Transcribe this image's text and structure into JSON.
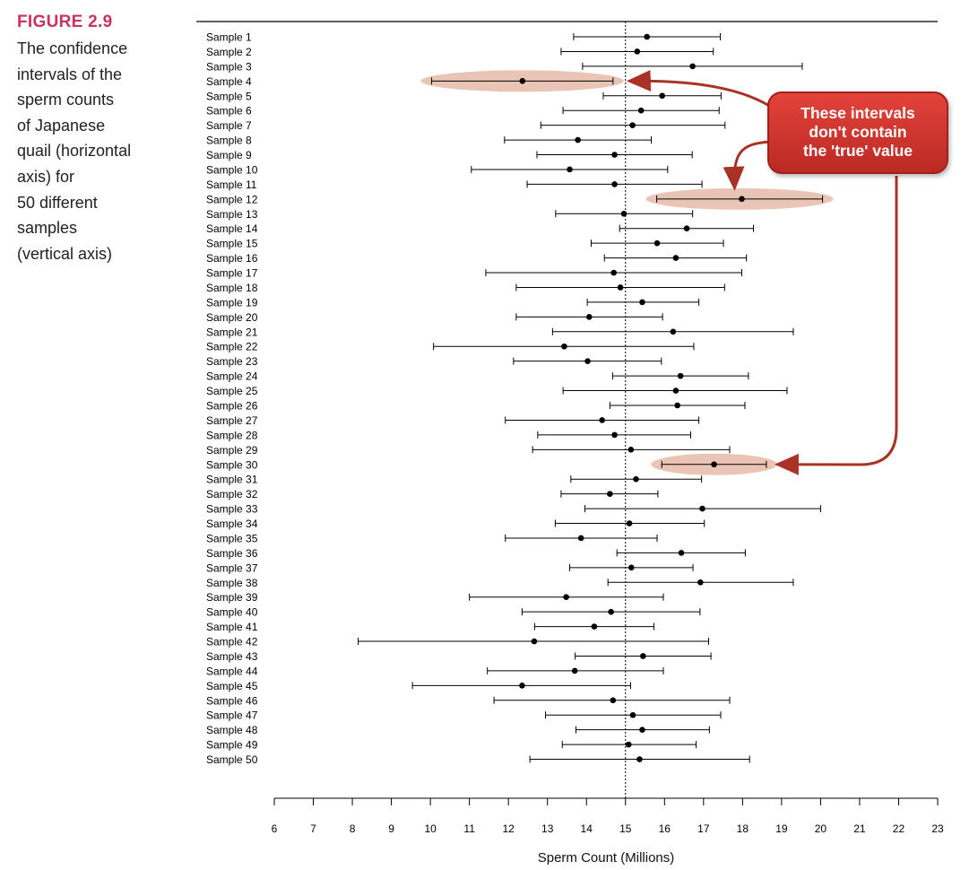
{
  "figure": {
    "label": "FIGURE 2.9",
    "caption_lines": [
      "The confidence",
      "intervals of the",
      "sperm counts",
      "of Japanese",
      "quail (horizontal",
      "axis) for",
      "50 different",
      "samples",
      "(vertical axis)"
    ]
  },
  "callout": {
    "lines": [
      "These intervals",
      "don't contain",
      "the 'true' value"
    ],
    "color": "#d9352e"
  },
  "colors": {
    "highlight": "#e8bfae",
    "arrow": "#a93226",
    "interval": "#000000"
  },
  "chart_data": {
    "type": "scatter",
    "xlabel": "Sperm Count (Millions)",
    "xlim": [
      6,
      23
    ],
    "xticks": [
      "6",
      "7",
      "8",
      "9",
      "10",
      "11",
      "12",
      "13",
      "14",
      "15",
      "16",
      "17",
      "18",
      "19",
      "20",
      "21",
      "22",
      "23"
    ],
    "true_value": 15,
    "highlighted_samples": [
      "Sample 4",
      "Sample 12",
      "Sample 30"
    ],
    "series": [
      {
        "name": "Sample 1",
        "mean": 15.55,
        "lower": 13.67,
        "upper": 17.43
      },
      {
        "name": "Sample 2",
        "mean": 15.3,
        "lower": 13.35,
        "upper": 17.25
      },
      {
        "name": "Sample 3",
        "mean": 16.72,
        "lower": 13.9,
        "upper": 19.53
      },
      {
        "name": "Sample 4",
        "mean": 12.36,
        "lower": 10.03,
        "upper": 14.68
      },
      {
        "name": "Sample 5",
        "mean": 15.94,
        "lower": 14.43,
        "upper": 17.45
      },
      {
        "name": "Sample 6",
        "mean": 15.4,
        "lower": 13.4,
        "upper": 17.4
      },
      {
        "name": "Sample 7",
        "mean": 15.18,
        "lower": 12.83,
        "upper": 17.55
      },
      {
        "name": "Sample 8",
        "mean": 13.78,
        "lower": 11.9,
        "upper": 15.66
      },
      {
        "name": "Sample 9",
        "mean": 14.72,
        "lower": 12.73,
        "upper": 16.71
      },
      {
        "name": "Sample 10",
        "mean": 13.57,
        "lower": 11.05,
        "upper": 16.08
      },
      {
        "name": "Sample 11",
        "mean": 14.72,
        "lower": 12.48,
        "upper": 16.96
      },
      {
        "name": "Sample 12",
        "mean": 17.98,
        "lower": 15.8,
        "upper": 20.05
      },
      {
        "name": "Sample 13",
        "mean": 14.96,
        "lower": 13.21,
        "upper": 16.72
      },
      {
        "name": "Sample 14",
        "mean": 16.57,
        "lower": 14.85,
        "upper": 18.28
      },
      {
        "name": "Sample 15",
        "mean": 15.81,
        "lower": 14.12,
        "upper": 17.51
      },
      {
        "name": "Sample 16",
        "mean": 16.29,
        "lower": 14.46,
        "upper": 18.1
      },
      {
        "name": "Sample 17",
        "mean": 14.7,
        "lower": 11.42,
        "upper": 17.98
      },
      {
        "name": "Sample 18",
        "mean": 14.87,
        "lower": 12.2,
        "upper": 17.54
      },
      {
        "name": "Sample 19",
        "mean": 15.43,
        "lower": 14.02,
        "upper": 16.88
      },
      {
        "name": "Sample 20",
        "mean": 14.07,
        "lower": 12.2,
        "upper": 15.95
      },
      {
        "name": "Sample 21",
        "mean": 16.22,
        "lower": 13.13,
        "upper": 19.3
      },
      {
        "name": "Sample 22",
        "mean": 13.43,
        "lower": 10.08,
        "upper": 16.75
      },
      {
        "name": "Sample 23",
        "mean": 14.03,
        "lower": 12.13,
        "upper": 15.92
      },
      {
        "name": "Sample 24",
        "mean": 16.41,
        "lower": 14.67,
        "upper": 18.15
      },
      {
        "name": "Sample 25",
        "mean": 16.29,
        "lower": 13.4,
        "upper": 19.14
      },
      {
        "name": "Sample 26",
        "mean": 16.33,
        "lower": 14.6,
        "upper": 18.06
      },
      {
        "name": "Sample 27",
        "mean": 14.4,
        "lower": 11.92,
        "upper": 16.88
      },
      {
        "name": "Sample 28",
        "mean": 14.72,
        "lower": 12.75,
        "upper": 16.67
      },
      {
        "name": "Sample 29",
        "mean": 15.14,
        "lower": 12.62,
        "upper": 17.67
      },
      {
        "name": "Sample 30",
        "mean": 17.27,
        "lower": 15.93,
        "upper": 18.61
      },
      {
        "name": "Sample 31",
        "mean": 15.27,
        "lower": 13.6,
        "upper": 16.95
      },
      {
        "name": "Sample 32",
        "mean": 14.6,
        "lower": 13.35,
        "upper": 15.83
      },
      {
        "name": "Sample 33",
        "mean": 16.97,
        "lower": 13.96,
        "upper": 20.0
      },
      {
        "name": "Sample 34",
        "mean": 15.1,
        "lower": 13.2,
        "upper": 17.02
      },
      {
        "name": "Sample 35",
        "mean": 13.86,
        "lower": 11.92,
        "upper": 15.81
      },
      {
        "name": "Sample 36",
        "mean": 16.43,
        "lower": 14.78,
        "upper": 18.07
      },
      {
        "name": "Sample 37",
        "mean": 15.15,
        "lower": 13.57,
        "upper": 16.73
      },
      {
        "name": "Sample 38",
        "mean": 16.92,
        "lower": 14.55,
        "upper": 19.3
      },
      {
        "name": "Sample 39",
        "mean": 13.48,
        "lower": 11.0,
        "upper": 15.97
      },
      {
        "name": "Sample 40",
        "mean": 14.63,
        "lower": 12.35,
        "upper": 16.91
      },
      {
        "name": "Sample 41",
        "mean": 14.2,
        "lower": 12.67,
        "upper": 15.73
      },
      {
        "name": "Sample 42",
        "mean": 12.66,
        "lower": 8.15,
        "upper": 17.13
      },
      {
        "name": "Sample 43",
        "mean": 15.45,
        "lower": 13.71,
        "upper": 17.19
      },
      {
        "name": "Sample 44",
        "mean": 13.7,
        "lower": 11.46,
        "upper": 15.97
      },
      {
        "name": "Sample 45",
        "mean": 12.35,
        "lower": 9.54,
        "upper": 15.13
      },
      {
        "name": "Sample 46",
        "mean": 14.68,
        "lower": 11.63,
        "upper": 17.67
      },
      {
        "name": "Sample 47",
        "mean": 15.19,
        "lower": 12.95,
        "upper": 17.44
      },
      {
        "name": "Sample 48",
        "mean": 15.43,
        "lower": 13.73,
        "upper": 17.15
      },
      {
        "name": "Sample 49",
        "mean": 15.08,
        "lower": 13.38,
        "upper": 16.81
      },
      {
        "name": "Sample 50",
        "mean": 15.36,
        "lower": 12.55,
        "upper": 18.18
      }
    ]
  }
}
